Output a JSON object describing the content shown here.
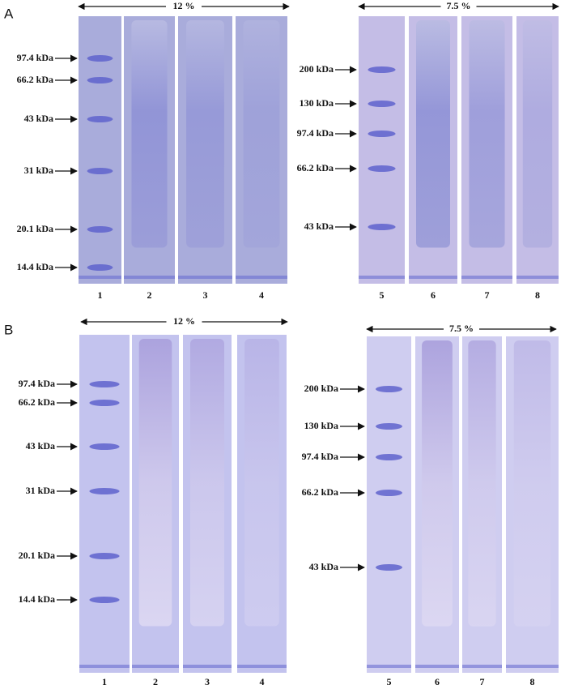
{
  "panels": [
    {
      "label": "A",
      "gels": [
        {
          "percent": "12 %",
          "markers": [
            "97.4 kDa",
            "66.2 kDa",
            "43 kDa",
            "31 kDa",
            "20.1 kDa",
            "14.4 kDa"
          ],
          "lanes": [
            "1",
            "2",
            "3",
            "4"
          ]
        },
        {
          "percent": "7.5 %",
          "markers": [
            "200 kDa",
            "130 kDa",
            "97.4 kDa",
            "66.2 kDa",
            "43 kDa"
          ],
          "lanes": [
            "5",
            "6",
            "7",
            "8"
          ]
        }
      ]
    },
    {
      "label": "B",
      "gels": [
        {
          "percent": "12 %",
          "markers": [
            "97.4 kDa",
            "66.2 kDa",
            "43 kDa",
            "31 kDa",
            "20.1 kDa",
            "14.4 kDa"
          ],
          "lanes": [
            "1",
            "2",
            "3",
            "4"
          ]
        },
        {
          "percent": "7.5 %",
          "markers": [
            "200 kDa",
            "130 kDa",
            "97.4 kDa",
            "66.2 kDa",
            "43 kDa"
          ],
          "lanes": [
            "5",
            "6",
            "7",
            "8"
          ]
        }
      ]
    }
  ]
}
